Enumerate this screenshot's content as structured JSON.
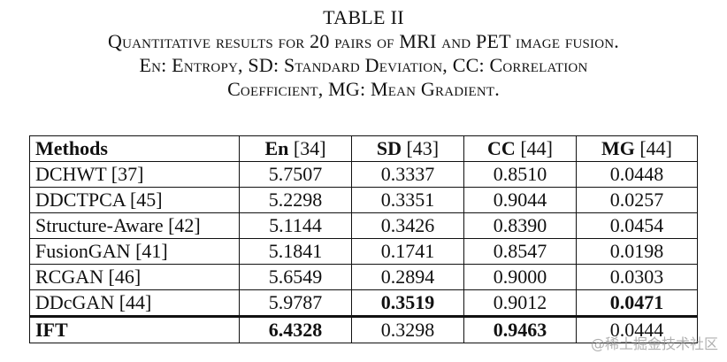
{
  "caption": {
    "label": "TABLE II",
    "lines": [
      "Quantitative results for 20 pairs of MRI and PET image fusion.",
      "En: Entropy, SD: Standard Deviation, CC: Correlation",
      "Coefficient, MG: Mean Gradient."
    ]
  },
  "table": {
    "headers": [
      {
        "name": "Methods",
        "ref": ""
      },
      {
        "name": "En",
        "ref": "[34]"
      },
      {
        "name": "SD",
        "ref": "[43]"
      },
      {
        "name": "CC",
        "ref": "[44]"
      },
      {
        "name": "MG",
        "ref": "[44]"
      }
    ],
    "rows": [
      {
        "method": "DCHWT [37]",
        "values": [
          "5.7507",
          "0.3337",
          "0.8510",
          "0.0448"
        ],
        "bold": [
          false,
          false,
          false,
          false
        ],
        "method_bold": false
      },
      {
        "method": "DDCTPCA [45]",
        "values": [
          "5.2298",
          "0.3351",
          "0.9044",
          "0.0257"
        ],
        "bold": [
          false,
          false,
          false,
          false
        ],
        "method_bold": false
      },
      {
        "method": "Structure-Aware [42]",
        "values": [
          "5.1144",
          "0.3426",
          "0.8390",
          "0.0454"
        ],
        "bold": [
          false,
          false,
          false,
          false
        ],
        "method_bold": false
      },
      {
        "method": "FusionGAN [41]",
        "values": [
          "5.1841",
          "0.1741",
          "0.8547",
          "0.0198"
        ],
        "bold": [
          false,
          false,
          false,
          false
        ],
        "method_bold": false
      },
      {
        "method": "RCGAN [46]",
        "values": [
          "5.6549",
          "0.2894",
          "0.9000",
          "0.0303"
        ],
        "bold": [
          false,
          false,
          false,
          false
        ],
        "method_bold": false
      },
      {
        "method": "DDcGAN [44]",
        "values": [
          "5.9787",
          "0.3519",
          "0.9012",
          "0.0471"
        ],
        "bold": [
          false,
          true,
          false,
          true
        ],
        "method_bold": false
      },
      {
        "method": "IFT",
        "values": [
          "6.4328",
          "0.3298",
          "0.9463",
          "0.0444"
        ],
        "bold": [
          true,
          false,
          true,
          false
        ],
        "method_bold": true
      }
    ]
  },
  "watermark": "@稀土掘金技术社区"
}
